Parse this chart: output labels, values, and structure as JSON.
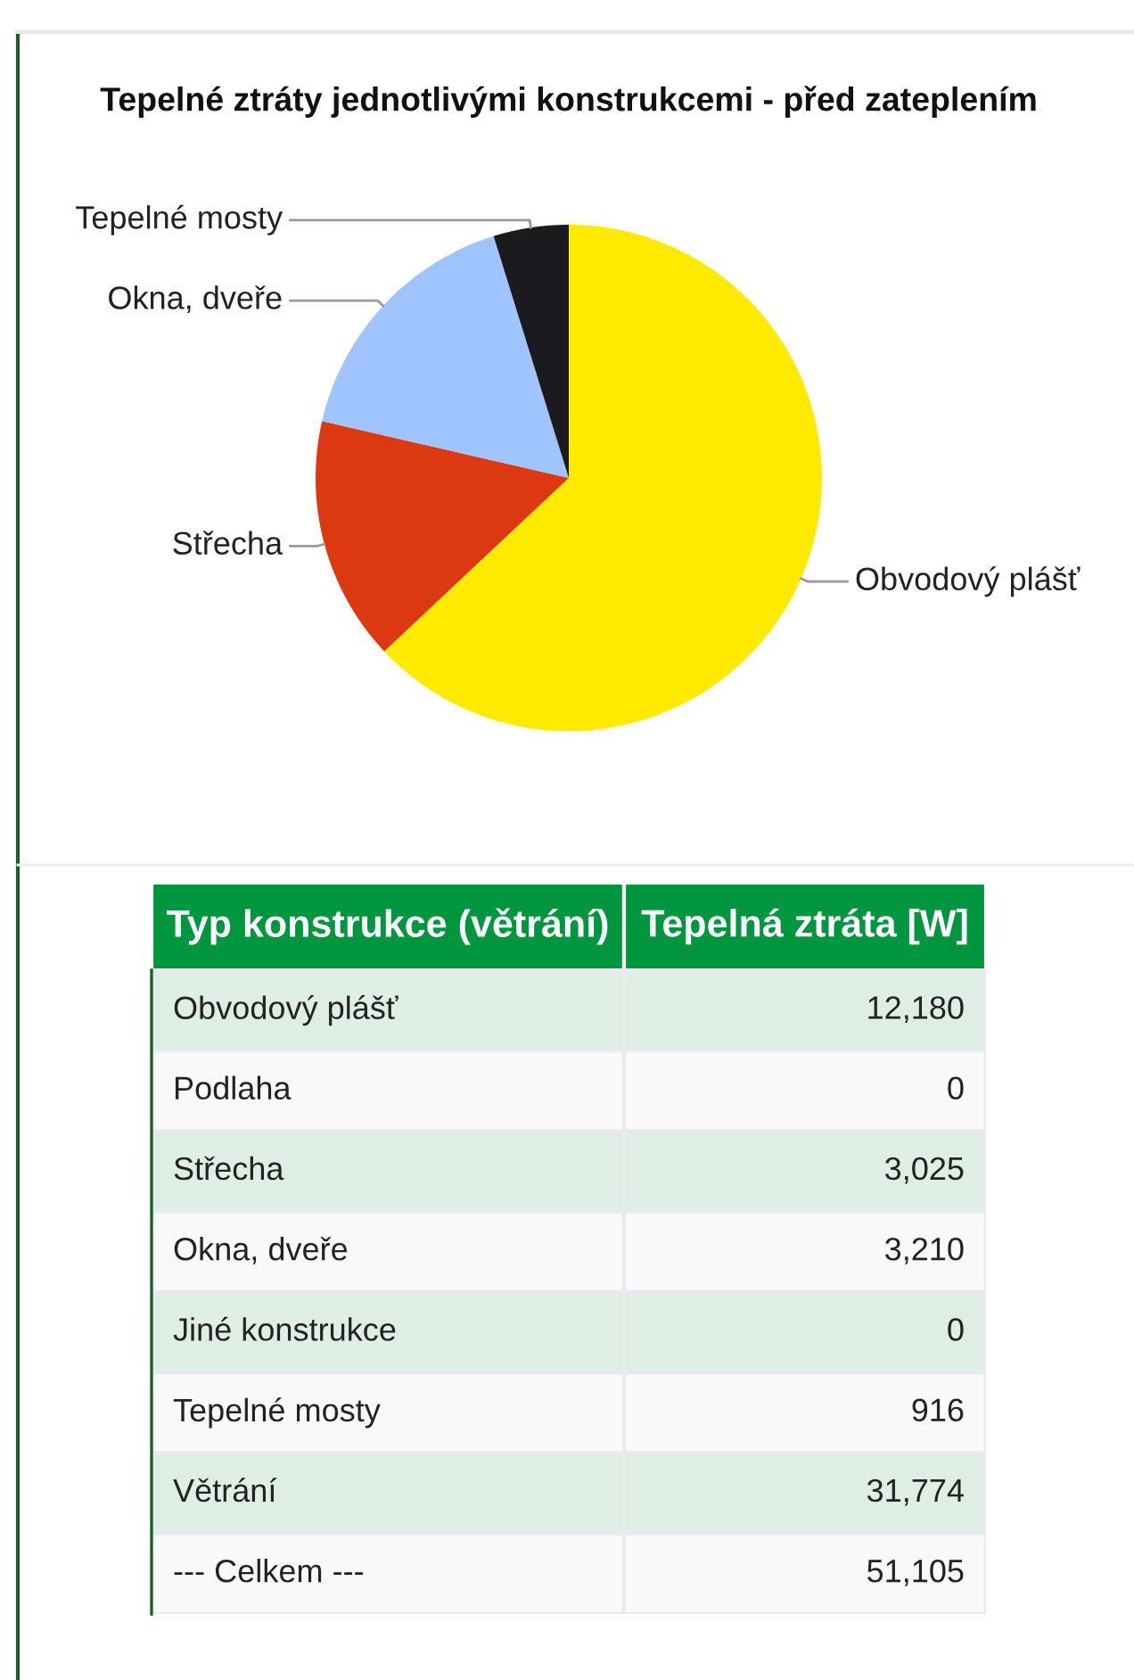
{
  "chart_data": [
    {
      "type": "pie",
      "title": "Tepelné ztráty jednotlivými konstrukcemi - před zateplením",
      "categories": [
        "Obvodový plášť",
        "Střecha",
        "Okna, dveře",
        "Tepelné mosty"
      ],
      "values": [
        63.0,
        15.6,
        16.6,
        4.8
      ],
      "colors": [
        "#ffea00",
        "#dc3912",
        "#a0c4ff",
        "#1b1a1e"
      ]
    },
    {
      "type": "other",
      "xlabel": "Typ konstrukce (větrání)",
      "ylabel": "Tepelná ztráta [W]",
      "categories": [
        "Obvodový plášť",
        "Podlaha",
        "Střecha",
        "Okna, dveře",
        "Jiné konstrukce",
        "Tepelné mosty",
        "Větrání",
        "--- Celkem ---"
      ],
      "values": [
        12180,
        0,
        3025,
        3210,
        0,
        916,
        31774,
        51105
      ],
      "value_labels": [
        "12,180",
        "0",
        "3,025",
        "3,210",
        "0",
        "916",
        "31,774",
        "51,105"
      ]
    }
  ]
}
